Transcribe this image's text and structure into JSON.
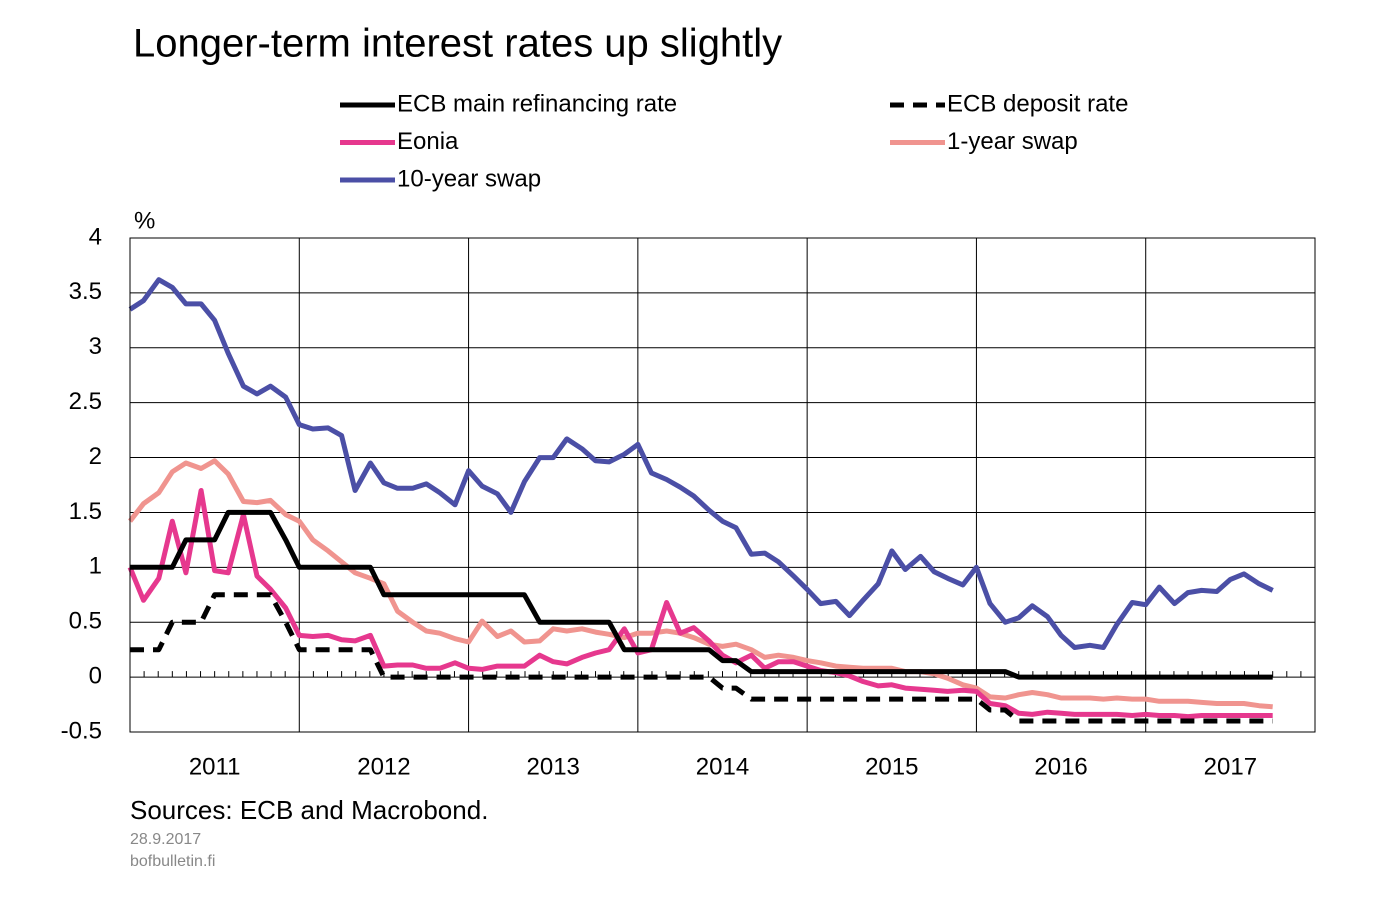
{
  "chart_data": {
    "type": "line",
    "title": "Longer-term interest rates up slightly",
    "unit": "%",
    "source": "Sources: ECB and Macrobond.",
    "date": "28.9.2017",
    "site": "bofbulletin.fi",
    "categories": [
      "2011",
      "2012",
      "2013",
      "2014",
      "2015",
      "2016",
      "2017"
    ],
    "x": [
      2011.0,
      2011.08,
      2011.17,
      2011.25,
      2011.33,
      2011.42,
      2011.5,
      2011.58,
      2011.67,
      2011.75,
      2011.83,
      2011.92,
      2012.0,
      2012.08,
      2012.17,
      2012.25,
      2012.33,
      2012.42,
      2012.5,
      2012.58,
      2012.67,
      2012.75,
      2012.83,
      2012.92,
      2013.0,
      2013.08,
      2013.17,
      2013.25,
      2013.33,
      2013.42,
      2013.5,
      2013.58,
      2013.67,
      2013.75,
      2013.83,
      2013.92,
      2014.0,
      2014.08,
      2014.17,
      2014.25,
      2014.33,
      2014.42,
      2014.5,
      2014.58,
      2014.67,
      2014.75,
      2014.83,
      2014.92,
      2015.0,
      2015.08,
      2015.17,
      2015.25,
      2015.33,
      2015.42,
      2015.5,
      2015.58,
      2015.67,
      2015.75,
      2015.83,
      2015.92,
      2016.0,
      2016.08,
      2016.17,
      2016.25,
      2016.33,
      2016.42,
      2016.5,
      2016.58,
      2016.67,
      2016.75,
      2016.83,
      2016.92,
      2017.0,
      2017.08,
      2017.17,
      2017.25,
      2017.33,
      2017.42,
      2017.5,
      2017.58,
      2017.67,
      2017.75
    ],
    "xlim": [
      2011,
      2018
    ],
    "xticks": [
      2011,
      2012,
      2013,
      2014,
      2015,
      2016,
      2017,
      2018
    ],
    "ylim": [
      -0.5,
      4
    ],
    "yticks": [
      -0.5,
      0,
      0.5,
      1,
      1.5,
      2,
      2.5,
      3,
      3.5,
      4
    ],
    "grid": true,
    "series": [
      {
        "name": "ECB main refinancing rate",
        "color": "#000000",
        "style": "solid",
        "values": [
          1,
          1,
          1,
          1,
          1.25,
          1.25,
          1.25,
          1.5,
          1.5,
          1.5,
          1.5,
          1.25,
          1,
          1,
          1,
          1,
          1,
          1,
          0.75,
          0.75,
          0.75,
          0.75,
          0.75,
          0.75,
          0.75,
          0.75,
          0.75,
          0.75,
          0.75,
          0.5,
          0.5,
          0.5,
          0.5,
          0.5,
          0.5,
          0.25,
          0.25,
          0.25,
          0.25,
          0.25,
          0.25,
          0.25,
          0.15,
          0.15,
          0.05,
          0.05,
          0.05,
          0.05,
          0.05,
          0.05,
          0.05,
          0.05,
          0.05,
          0.05,
          0.05,
          0.05,
          0.05,
          0.05,
          0.05,
          0.05,
          0.05,
          0.05,
          0.05,
          0,
          0,
          0,
          0,
          0,
          0,
          0,
          0,
          0,
          0,
          0,
          0,
          0,
          0,
          0,
          0,
          0,
          0,
          0
        ]
      },
      {
        "name": "ECB deposit rate",
        "color": "#000000",
        "style": "dashed",
        "values": [
          0.25,
          0.25,
          0.25,
          0.5,
          0.5,
          0.5,
          0.75,
          0.75,
          0.75,
          0.75,
          0.75,
          0.5,
          0.25,
          0.25,
          0.25,
          0.25,
          0.25,
          0.25,
          0,
          0,
          0,
          0,
          0,
          0,
          0,
          0,
          0,
          0,
          0,
          0,
          0,
          0,
          0,
          0,
          0,
          0,
          0,
          0,
          0,
          0,
          0,
          0,
          -0.1,
          -0.1,
          -0.2,
          -0.2,
          -0.2,
          -0.2,
          -0.2,
          -0.2,
          -0.2,
          -0.2,
          -0.2,
          -0.2,
          -0.2,
          -0.2,
          -0.2,
          -0.2,
          -0.2,
          -0.2,
          -0.2,
          -0.3,
          -0.3,
          -0.4,
          -0.4,
          -0.4,
          -0.4,
          -0.4,
          -0.4,
          -0.4,
          -0.4,
          -0.4,
          -0.4,
          -0.4,
          -0.4,
          -0.4,
          -0.4,
          -0.4,
          -0.4,
          -0.4,
          -0.4,
          -0.4
        ]
      },
      {
        "name": "Eonia",
        "color": "#e6388e",
        "style": "solid",
        "values": [
          1.0,
          0.7,
          0.9,
          1.42,
          0.95,
          1.7,
          0.97,
          0.95,
          1.48,
          0.92,
          0.8,
          0.63,
          0.38,
          0.37,
          0.38,
          0.34,
          0.33,
          0.38,
          0.1,
          0.11,
          0.11,
          0.08,
          0.08,
          0.13,
          0.08,
          0.07,
          0.1,
          0.1,
          0.1,
          0.2,
          0.14,
          0.12,
          0.18,
          0.22,
          0.25,
          0.44,
          0.22,
          0.25,
          0.68,
          0.4,
          0.45,
          0.33,
          0.2,
          0.13,
          0.2,
          0.08,
          0.14,
          0.14,
          0.1,
          0.06,
          0.04,
          0.01,
          -0.04,
          -0.08,
          -0.07,
          -0.1,
          -0.11,
          -0.12,
          -0.13,
          -0.12,
          -0.13,
          -0.24,
          -0.26,
          -0.33,
          -0.34,
          -0.32,
          -0.33,
          -0.34,
          -0.34,
          -0.34,
          -0.34,
          -0.35,
          -0.34,
          -0.35,
          -0.35,
          -0.36,
          -0.35,
          -0.35,
          -0.35,
          -0.35,
          -0.35,
          -0.35
        ]
      },
      {
        "name": "1-year swap",
        "color": "#f0948f",
        "style": "solid",
        "values": [
          1.42,
          1.58,
          1.68,
          1.87,
          1.95,
          1.9,
          1.97,
          1.85,
          1.6,
          1.59,
          1.61,
          1.48,
          1.42,
          1.25,
          1.15,
          1.05,
          0.95,
          0.9,
          0.85,
          0.6,
          0.5,
          0.42,
          0.4,
          0.35,
          0.32,
          0.51,
          0.37,
          0.42,
          0.32,
          0.33,
          0.44,
          0.42,
          0.44,
          0.41,
          0.39,
          0.36,
          0.4,
          0.4,
          0.42,
          0.4,
          0.36,
          0.3,
          0.28,
          0.3,
          0.25,
          0.18,
          0.2,
          0.18,
          0.15,
          0.13,
          0.1,
          0.09,
          0.08,
          0.08,
          0.08,
          0.05,
          0.05,
          0.03,
          -0.01,
          -0.07,
          -0.1,
          -0.18,
          -0.19,
          -0.16,
          -0.14,
          -0.16,
          -0.19,
          -0.19,
          -0.19,
          -0.2,
          -0.19,
          -0.2,
          -0.2,
          -0.22,
          -0.22,
          -0.22,
          -0.23,
          -0.24,
          -0.24,
          -0.24,
          -0.26,
          -0.27
        ]
      },
      {
        "name": "10-year swap",
        "color": "#4b4fa6",
        "style": "solid",
        "values": [
          3.35,
          3.43,
          3.62,
          3.55,
          3.4,
          3.4,
          3.25,
          2.95,
          2.65,
          2.58,
          2.65,
          2.55,
          2.3,
          2.26,
          2.27,
          2.2,
          1.7,
          1.95,
          1.77,
          1.72,
          1.72,
          1.76,
          1.68,
          1.57,
          1.88,
          1.74,
          1.67,
          1.5,
          1.78,
          2.0,
          2.0,
          2.17,
          2.08,
          1.97,
          1.96,
          2.03,
          2.12,
          1.86,
          1.8,
          1.73,
          1.65,
          1.52,
          1.42,
          1.36,
          1.12,
          1.13,
          1.05,
          0.92,
          0.8,
          0.67,
          0.69,
          0.56,
          0.7,
          0.85,
          1.15,
          0.98,
          1.1,
          0.96,
          0.9,
          0.84,
          1.0,
          0.67,
          0.5,
          0.54,
          0.65,
          0.55,
          0.38,
          0.27,
          0.29,
          0.27,
          0.48,
          0.68,
          0.66,
          0.82,
          0.67,
          0.77,
          0.79,
          0.78,
          0.89,
          0.94,
          0.85,
          0.79
        ]
      }
    ]
  }
}
